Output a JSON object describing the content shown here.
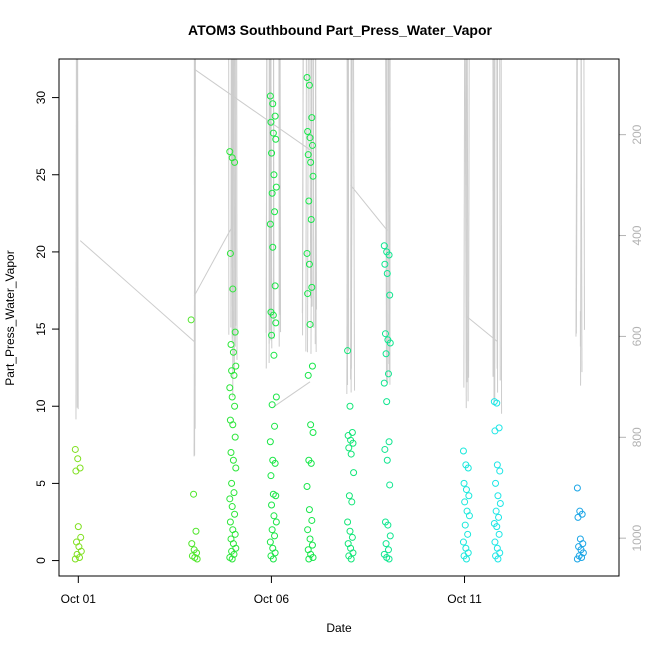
{
  "chart_data": {
    "type": "scatter",
    "title": "ATOM3 Southbound Part_Press_Water_Vapor",
    "xlabel": "Date",
    "ylabel": "Part_Press_Water_Vapor",
    "x_ticks": [
      "Oct 01",
      "Oct 06",
      "Oct 11"
    ],
    "y_ticks": [
      "0",
      "5",
      "10",
      "15",
      "20",
      "25",
      "30"
    ],
    "y_range": [
      -1,
      32.5
    ],
    "x_range_days": [
      0.5,
      15.0
    ],
    "right_axis": {
      "ticks": [
        "200",
        "400",
        "600",
        "800",
        "1000"
      ],
      "range": [
        50,
        1075
      ],
      "reversed": true,
      "color": "#b3b3b3"
    },
    "line_color": "#cccccc",
    "point_groups": [
      {
        "x": 1.0,
        "color": "#7fe01f",
        "values": [
          7.2,
          6.6,
          6.0,
          5.8,
          2.2,
          1.5,
          1.2,
          0.9,
          0.6,
          0.4,
          0.2,
          0.1
        ]
      },
      {
        "x": 4.0,
        "color": "#4fe62a",
        "values": [
          15.6,
          4.3,
          1.9,
          1.1,
          0.7,
          0.5,
          0.3,
          0.2,
          0.1
        ]
      },
      {
        "x": 5.0,
        "color": "#2ce63a",
        "values": [
          26.5,
          26.1,
          25.8,
          19.9,
          17.6,
          14.8,
          14.0,
          13.5,
          12.6,
          12.3,
          12.0,
          11.2,
          10.6,
          10.0,
          9.1,
          8.8,
          8.0,
          7.0,
          6.5,
          6.0,
          5.0,
          4.4,
          4.0,
          3.5,
          3.0,
          2.5,
          2.0,
          1.7,
          1.4,
          1.1,
          0.8,
          0.6,
          0.4,
          0.2,
          0.1
        ]
      },
      {
        "x": 6.05,
        "color": "#19e645",
        "values": [
          30.1,
          29.6,
          28.8,
          28.4,
          27.7,
          27.3,
          26.4,
          25.0,
          24.2,
          23.8,
          22.6,
          21.8,
          20.3,
          17.8,
          16.1,
          15.9,
          15.4,
          14.6,
          13.3,
          10.6,
          10.1,
          8.7,
          7.7,
          6.5,
          6.3,
          5.5,
          4.3,
          4.2,
          3.6,
          2.9,
          2.5,
          2.0,
          1.6,
          1.2,
          0.8,
          0.5,
          0.3,
          0.1
        ]
      },
      {
        "x": 7.0,
        "color": "#17e64a",
        "values": [
          31.3,
          30.8,
          28.7,
          27.8,
          27.4,
          26.9,
          26.3,
          25.8,
          24.9,
          23.3,
          22.1,
          19.9,
          19.2,
          17.7,
          17.3,
          15.3,
          12.6,
          12.0,
          8.8,
          8.3,
          6.5,
          6.3,
          4.8,
          3.3,
          2.6,
          2.0,
          1.4,
          1.0,
          0.7,
          0.4,
          0.2,
          0.1
        ]
      },
      {
        "x": 8.05,
        "color": "#12e678",
        "values": [
          13.6,
          10.0,
          8.3,
          8.1,
          7.8,
          7.6,
          7.3,
          6.9,
          5.7,
          4.2,
          3.8,
          2.5,
          1.9,
          1.5,
          1.1,
          0.8,
          0.5,
          0.3,
          0.1
        ]
      },
      {
        "x": 9.0,
        "color": "#10e690",
        "values": [
          20.4,
          20.0,
          19.8,
          19.2,
          18.6,
          17.2,
          14.7,
          14.3,
          14.1,
          13.4,
          12.1,
          11.5,
          10.3,
          7.7,
          7.2,
          6.5,
          4.9,
          2.5,
          2.3,
          1.6,
          1.1,
          0.7,
          0.4,
          0.2,
          0.1
        ]
      },
      {
        "x": 11.05,
        "color": "#19e8dc",
        "values": [
          7.1,
          6.2,
          6.0,
          5.0,
          4.6,
          4.2,
          3.8,
          3.2,
          2.9,
          2.3,
          1.7,
          1.2,
          0.8,
          0.5,
          0.3,
          0.1
        ]
      },
      {
        "x": 11.85,
        "color": "#1de6e6",
        "values": [
          10.3,
          10.2,
          8.6,
          8.4,
          6.2,
          5.8,
          5.0,
          4.2,
          3.7,
          3.2,
          2.8,
          2.4,
          2.2,
          1.7,
          1.2,
          0.8,
          0.5,
          0.3,
          0.1
        ]
      },
      {
        "x": 14.0,
        "color": "#1aa5e6",
        "values": [
          4.7,
          3.2,
          3.0,
          2.8,
          1.4,
          1.1,
          0.9,
          0.7,
          0.5,
          0.3,
          0.2,
          0.1
        ]
      }
    ]
  }
}
